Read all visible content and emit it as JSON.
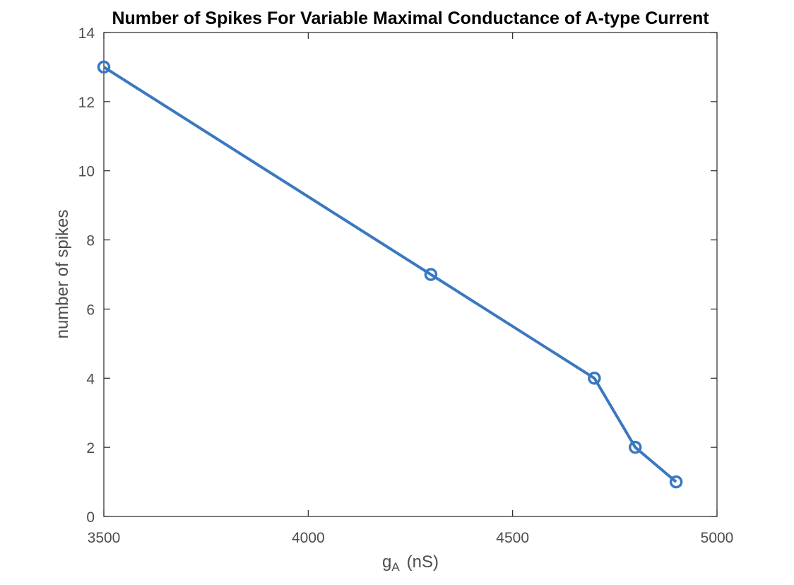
{
  "chart_data": {
    "type": "line",
    "title": "Number of Spikes For Variable Maximal Conductance of A-type Current",
    "xlabel_main": "g",
    "xlabel_sub": "A",
    "xlabel_unit": "(nS)",
    "ylabel": "number of spikes",
    "xlim": [
      3500,
      5000
    ],
    "ylim": [
      0,
      14
    ],
    "xticks": [
      3500,
      4000,
      4500,
      5000
    ],
    "yticks": [
      0,
      2,
      4,
      6,
      8,
      10,
      12,
      14
    ],
    "grid": false,
    "series": [
      {
        "x": [
          3500,
          4300,
          4700,
          4800,
          4900
        ],
        "y": [
          13,
          7,
          4,
          2,
          1
        ]
      }
    ],
    "colors": {
      "line": "#3a78c0",
      "axes": "#262626",
      "text": "#4d4d4d"
    }
  }
}
